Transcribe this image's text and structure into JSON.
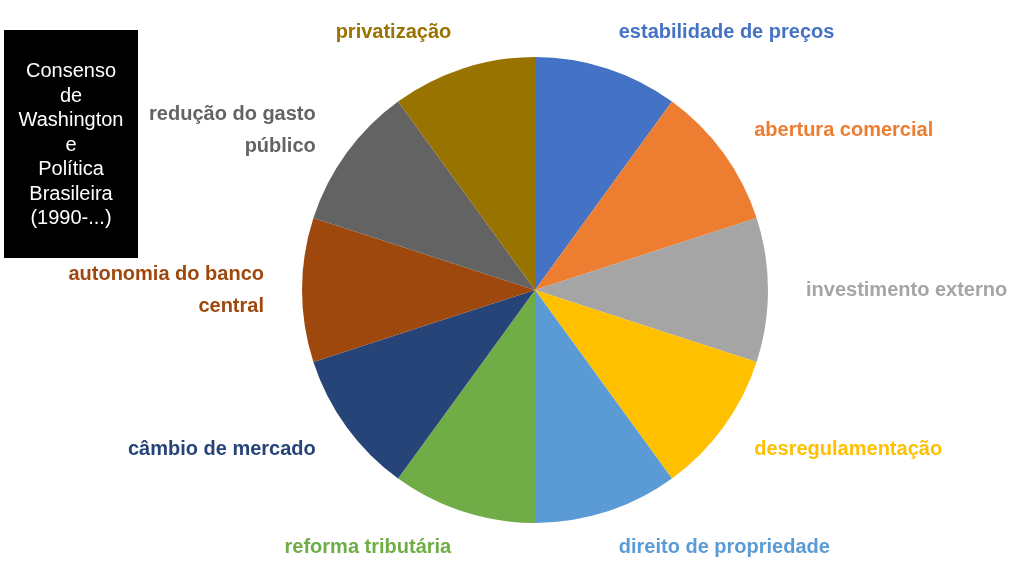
{
  "chart_data": {
    "type": "pie",
    "title": "Consenso de Washington e Política Brasileira (1990-...)",
    "categories": [
      "estabilidade de preços",
      "abertura comercial",
      "investimento externo",
      "desregulamentação",
      "direito de propriedade",
      "reforma tributária",
      "câmbio de mercado",
      "autonomia do banco central",
      "redução do gasto público",
      "privatização"
    ],
    "values": [
      10,
      10,
      10,
      10,
      10,
      10,
      10,
      10,
      10,
      10
    ],
    "colors": [
      "#4472c4",
      "#ed7d31",
      "#a5a5a5",
      "#ffc000",
      "#5b9bd5",
      "#70ad47",
      "#264478",
      "#9e480e",
      "#636363",
      "#997300"
    ],
    "legend": false
  }
}
